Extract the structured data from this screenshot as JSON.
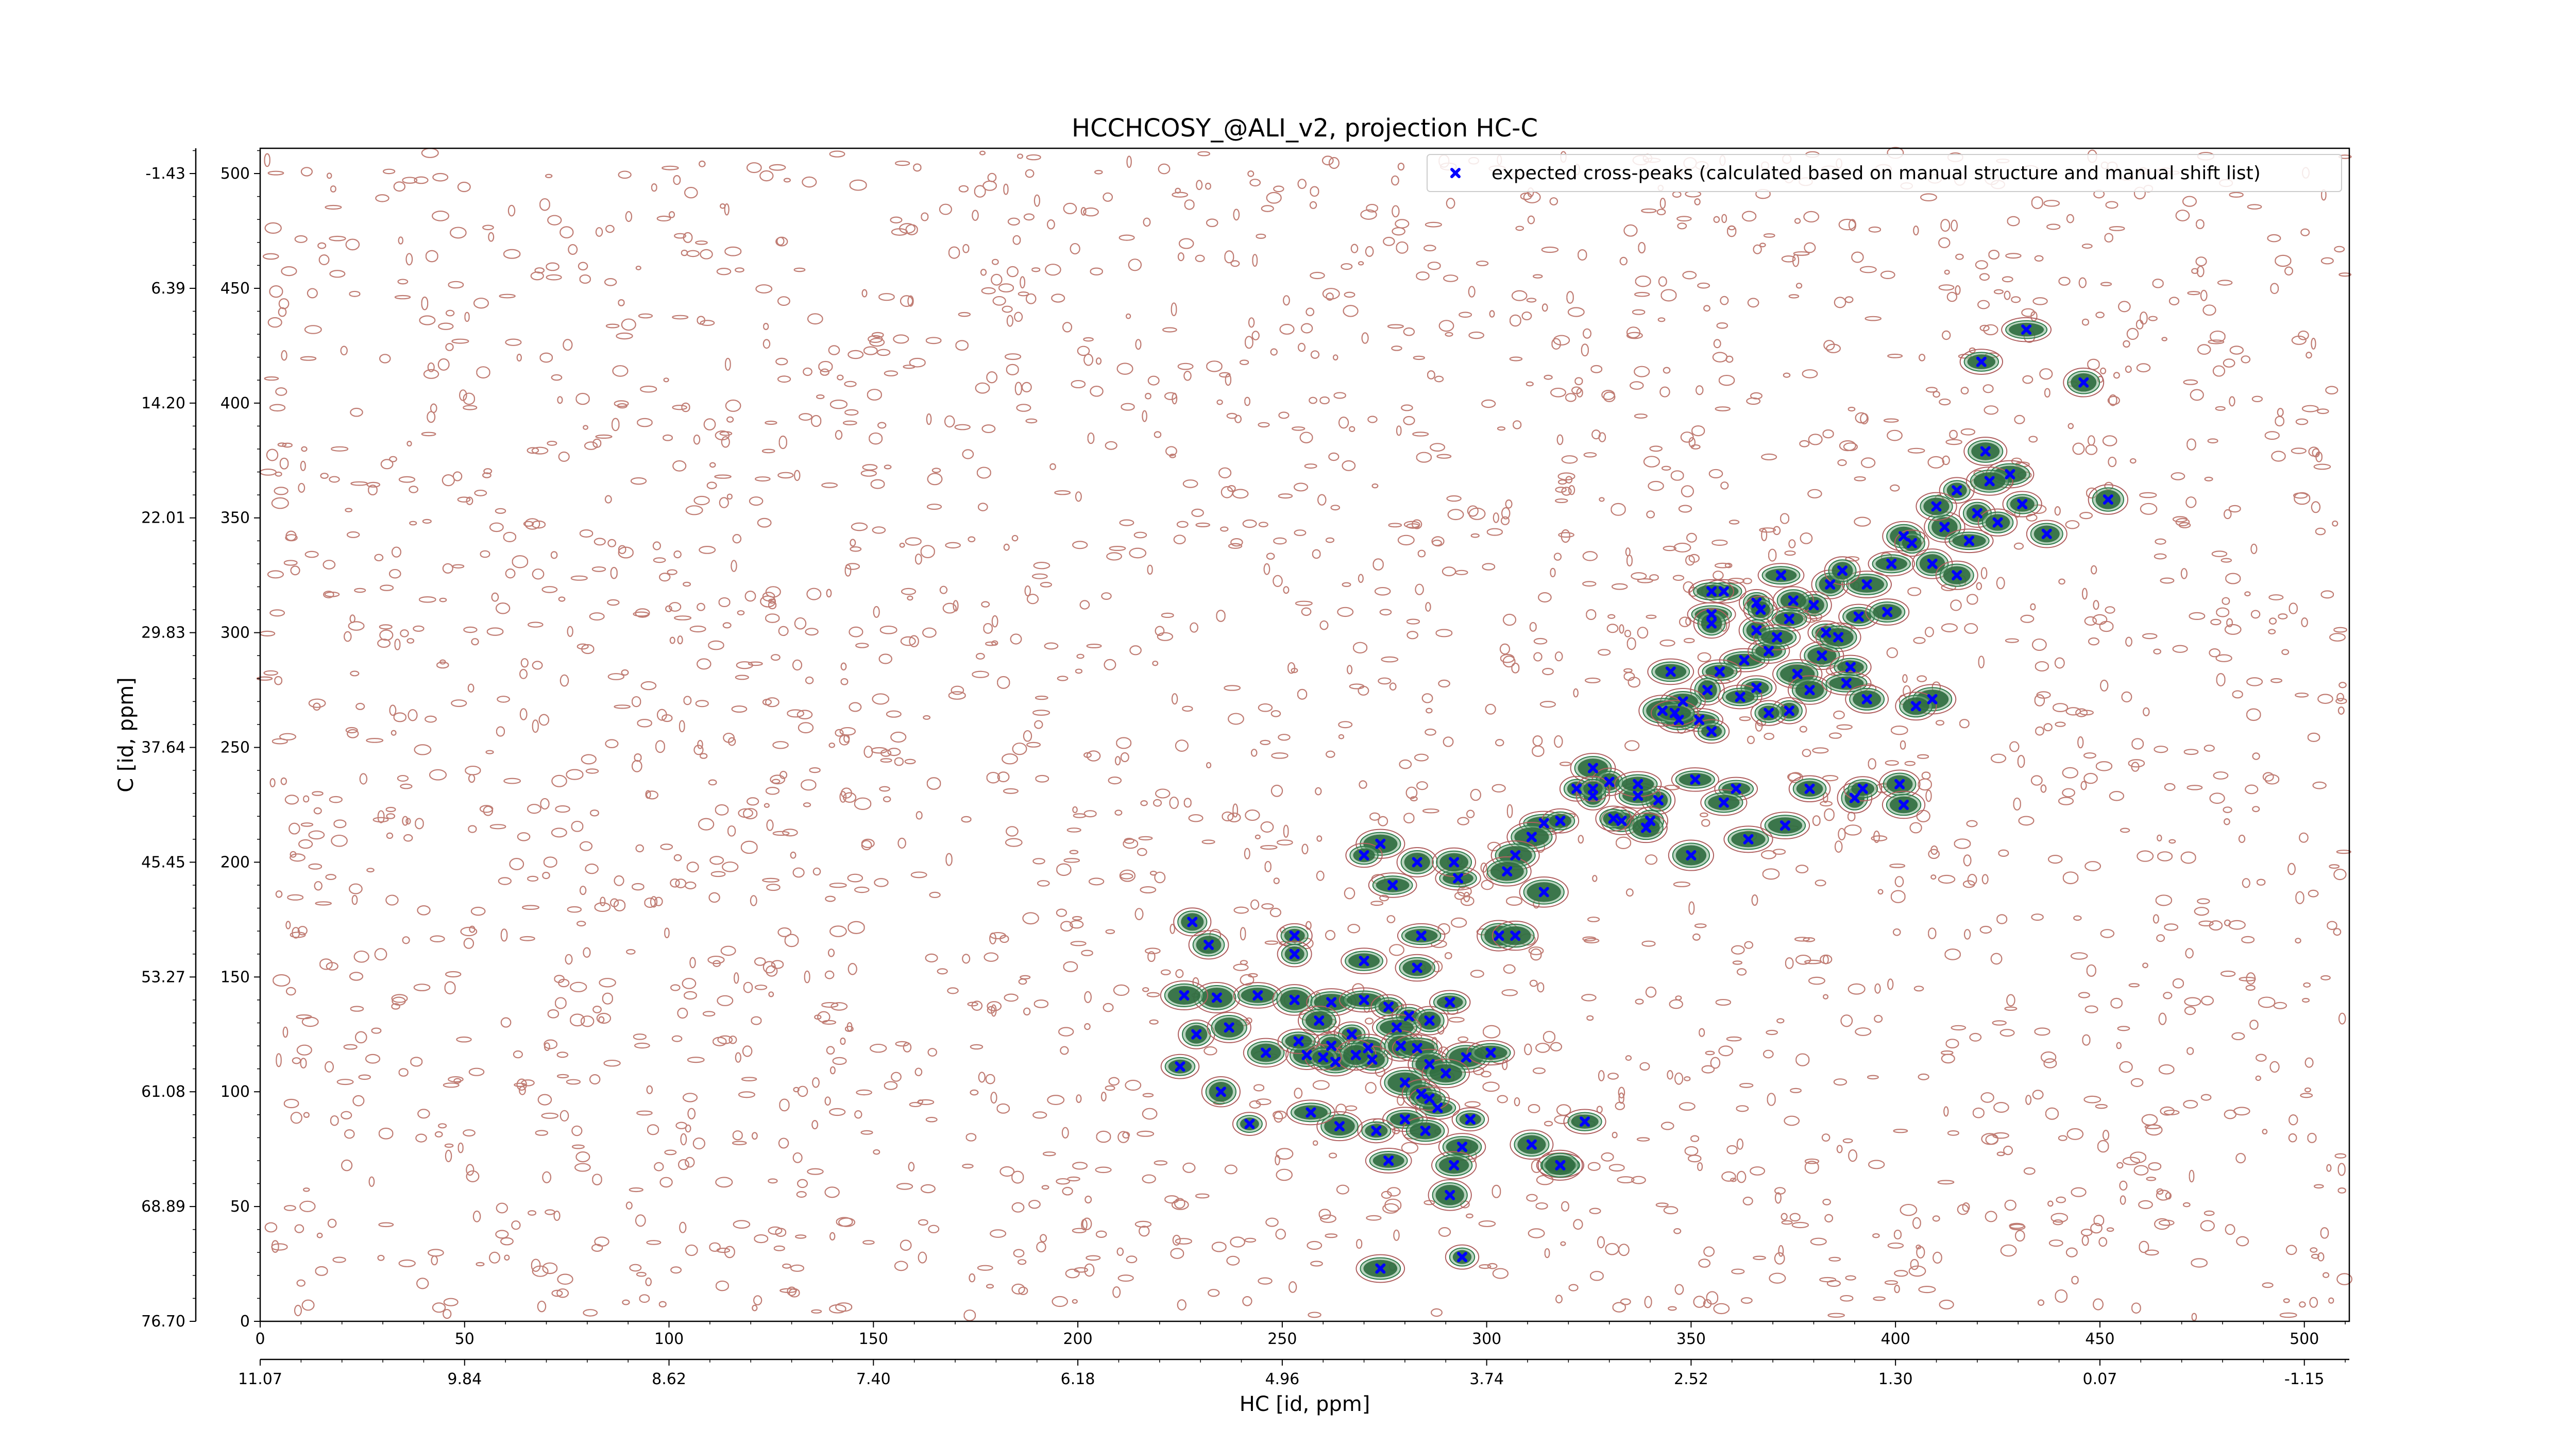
{
  "chart_data": {
    "type": "scatter",
    "title": "HCCHCOSY_@ALI_v2, projection HC-C",
    "xlabel": "HC [id, ppm]",
    "ylabel": "C [id, ppm]",
    "x_index_ticks": [
      "0",
      "50",
      "100",
      "150",
      "200",
      "250",
      "300",
      "350",
      "400",
      "450",
      "500"
    ],
    "x_ppm_ticks": [
      "11.07",
      "9.84",
      "8.62",
      "7.40",
      "6.18",
      "4.96",
      "3.74",
      "2.52",
      "1.30",
      "0.07",
      "-1.15"
    ],
    "y_index_ticks": [
      "500",
      "450",
      "400",
      "350",
      "300",
      "250",
      "200",
      "150",
      "100",
      "50",
      "0"
    ],
    "y_ppm_ticks": [
      "-1.43",
      "6.39",
      "14.20",
      "22.01",
      "29.83",
      "37.64",
      "45.45",
      "53.27",
      "61.08",
      "68.89",
      "76.70"
    ],
    "xlim": [
      0,
      511
    ],
    "ylim": [
      0,
      511
    ],
    "legend": {
      "placement": "top-right",
      "entries": [
        {
          "label": "expected cross-peaks (calculated based on manual structure and manual shift list)",
          "marker": "x",
          "color": "#0000ff"
        }
      ]
    },
    "series": [
      {
        "name": "expected cross-peaks (calculated based on manual structure and manual shift list)",
        "color": "#0000ff",
        "points": [
          [
            432,
            432
          ],
          [
            421,
            418
          ],
          [
            446,
            409
          ],
          [
            422,
            379
          ],
          [
            431,
            356
          ],
          [
            420,
            352
          ],
          [
            452,
            358
          ],
          [
            437,
            343
          ],
          [
            415,
            362
          ],
          [
            425,
            348
          ],
          [
            412,
            346
          ],
          [
            409,
            330
          ],
          [
            418,
            340
          ],
          [
            402,
            342
          ],
          [
            399,
            330
          ],
          [
            415,
            325
          ],
          [
            428,
            369
          ],
          [
            423,
            366
          ],
          [
            410,
            355
          ],
          [
            404,
            339
          ],
          [
            384,
            321
          ],
          [
            380,
            312
          ],
          [
            393,
            321
          ],
          [
            387,
            327
          ],
          [
            375,
            314
          ],
          [
            372,
            325
          ],
          [
            391,
            307
          ],
          [
            383,
            300
          ],
          [
            374,
            306
          ],
          [
            366,
            301
          ],
          [
            358,
            318
          ],
          [
            355,
            308
          ],
          [
            366,
            313
          ],
          [
            398,
            309
          ],
          [
            363,
            288
          ],
          [
            369,
            292
          ],
          [
            382,
            290
          ],
          [
            389,
            285
          ],
          [
            376,
            282
          ],
          [
            366,
            276
          ],
          [
            357,
            283
          ],
          [
            354,
            275
          ],
          [
            345,
            283
          ],
          [
            348,
            270
          ],
          [
            362,
            272
          ],
          [
            374,
            266
          ],
          [
            379,
            275
          ],
          [
            388,
            278
          ],
          [
            393,
            271
          ],
          [
            352,
            262
          ],
          [
            347,
            262
          ],
          [
            355,
            257
          ],
          [
            343,
            266
          ],
          [
            369,
            265
          ],
          [
            355,
            304
          ],
          [
            386,
            298
          ],
          [
            371,
            298
          ],
          [
            346,
            265
          ],
          [
            367,
            310
          ],
          [
            355,
            318
          ],
          [
            409,
            271
          ],
          [
            405,
            268
          ],
          [
            379,
            232
          ],
          [
            390,
            228
          ],
          [
            401,
            234
          ],
          [
            402,
            225
          ],
          [
            392,
            232
          ],
          [
            361,
            232
          ],
          [
            358,
            226
          ],
          [
            351,
            236
          ],
          [
            342,
            227
          ],
          [
            337,
            229
          ],
          [
            333,
            218
          ],
          [
            340,
            218
          ],
          [
            314,
            217
          ],
          [
            318,
            218
          ],
          [
            326,
            241
          ],
          [
            330,
            235
          ],
          [
            322,
            232
          ],
          [
            339,
            215
          ],
          [
            337,
            234
          ],
          [
            326,
            229
          ],
          [
            331,
            219
          ],
          [
            311,
            211
          ],
          [
            307,
            203
          ],
          [
            305,
            196
          ],
          [
            314,
            187
          ],
          [
            326,
            232
          ],
          [
            364,
            210
          ],
          [
            373,
            216
          ],
          [
            350,
            203
          ],
          [
            274,
            208
          ],
          [
            270,
            203
          ],
          [
            283,
            200
          ],
          [
            293,
            193
          ],
          [
            292,
            200
          ],
          [
            277,
            190
          ],
          [
            303,
            168
          ],
          [
            307,
            168
          ],
          [
            284,
            168
          ],
          [
            228,
            174
          ],
          [
            232,
            164
          ],
          [
            253,
            168
          ],
          [
            253,
            160
          ],
          [
            270,
            157
          ],
          [
            283,
            154
          ],
          [
            234,
            141
          ],
          [
            226,
            142
          ],
          [
            244,
            142
          ],
          [
            253,
            140
          ],
          [
            262,
            139
          ],
          [
            259,
            131
          ],
          [
            270,
            140
          ],
          [
            276,
            137
          ],
          [
            281,
            133
          ],
          [
            286,
            131
          ],
          [
            291,
            139
          ],
          [
            267,
            125
          ],
          [
            271,
            119
          ],
          [
            262,
            120
          ],
          [
            256,
            116
          ],
          [
            263,
            113
          ],
          [
            278,
            128
          ],
          [
            279,
            120
          ],
          [
            283,
            119
          ],
          [
            286,
            112
          ],
          [
            280,
            104
          ],
          [
            272,
            114
          ],
          [
            268,
            116
          ],
          [
            225,
            111
          ],
          [
            229,
            125
          ],
          [
            237,
            128
          ],
          [
            246,
            117
          ],
          [
            254,
            122
          ],
          [
            260,
            115
          ],
          [
            295,
            115
          ],
          [
            301,
            117
          ],
          [
            290,
            108
          ],
          [
            284,
            99
          ],
          [
            288,
            93
          ],
          [
            296,
            88
          ],
          [
            294,
            76
          ],
          [
            292,
            68
          ],
          [
            286,
            97
          ],
          [
            280,
            88
          ],
          [
            273,
            83
          ],
          [
            264,
            85
          ],
          [
            257,
            91
          ],
          [
            285,
            83
          ],
          [
            276,
            70
          ],
          [
            291,
            55
          ],
          [
            311,
            77
          ],
          [
            324,
            87
          ],
          [
            242,
            86
          ],
          [
            235,
            100
          ],
          [
            274,
            23
          ],
          [
            318,
            68
          ],
          [
            318,
            68
          ],
          [
            294,
            28
          ]
        ]
      }
    ]
  }
}
